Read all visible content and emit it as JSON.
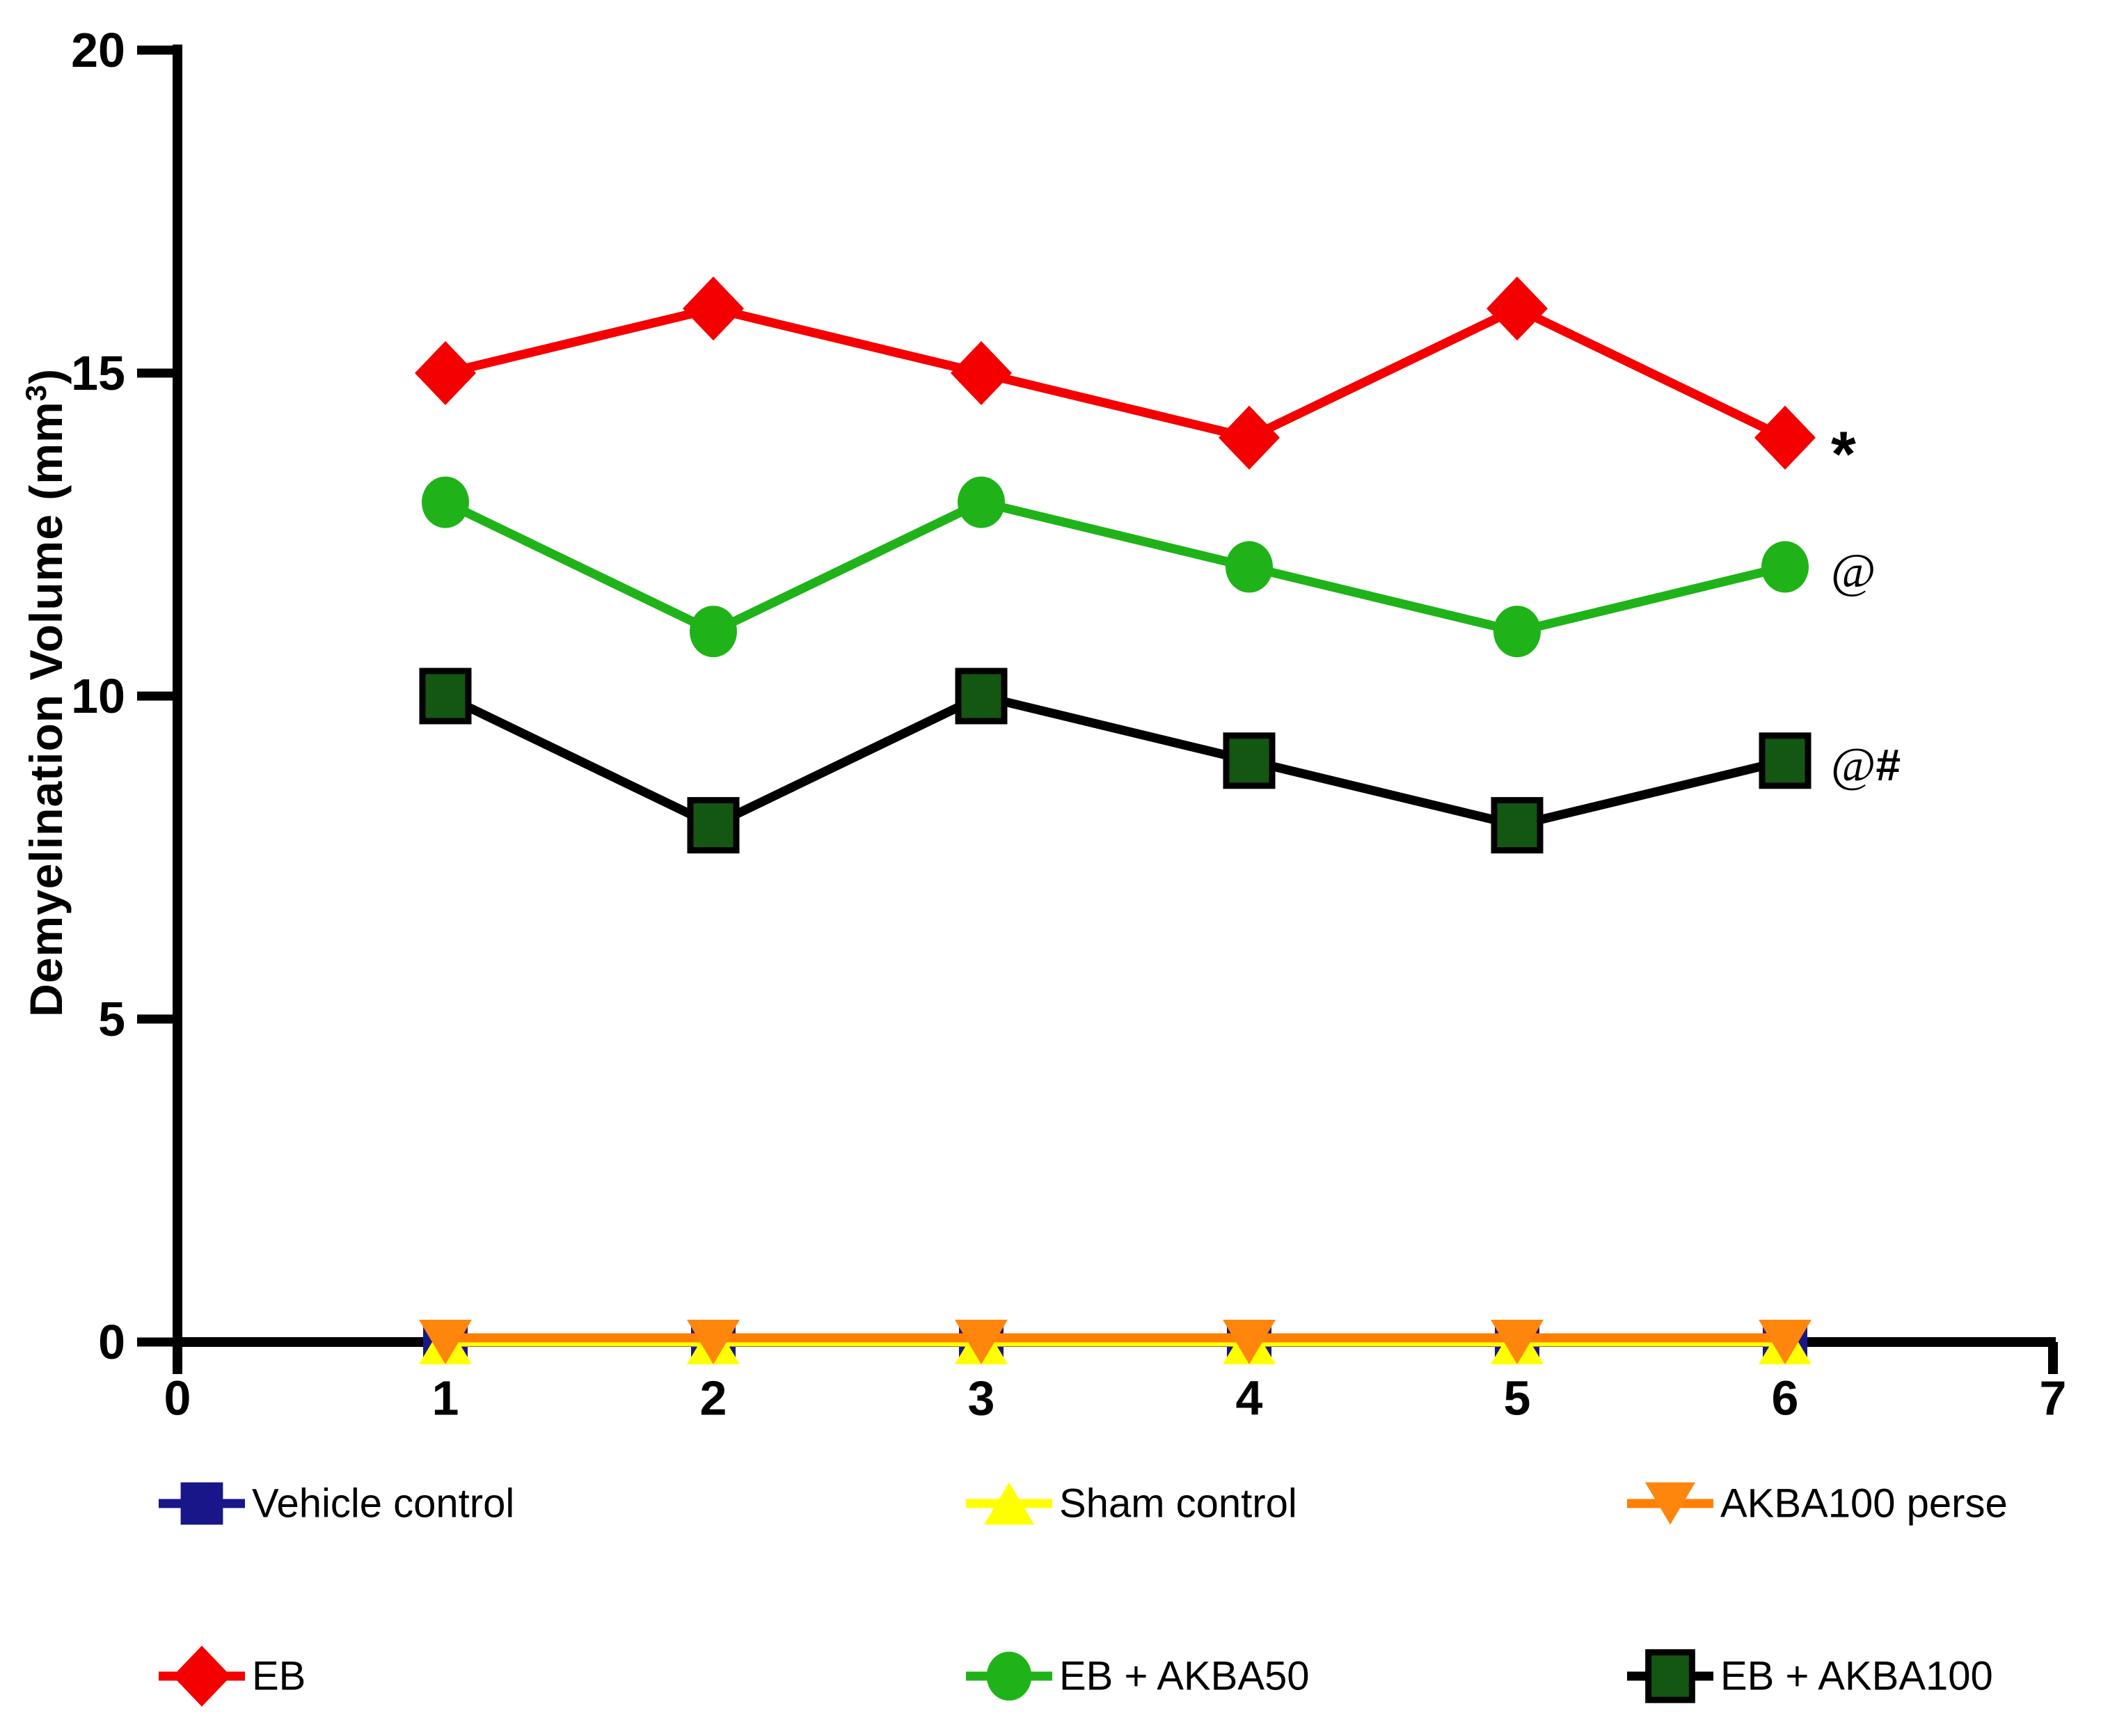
{
  "figure": {
    "background": "#ffffff",
    "ylabel": {
      "prefix": "Demyelination Volume (mm",
      "sup": "3",
      "suffix": ")"
    }
  },
  "chart_data": {
    "type": "line",
    "ylabel": "Demyelination Volume (mm3)",
    "x": [
      1,
      2,
      3,
      4,
      5,
      6
    ],
    "xlim": [
      0,
      7
    ],
    "ylim": [
      0,
      20
    ],
    "xticks": [
      0,
      1,
      2,
      3,
      4,
      5,
      6,
      7
    ],
    "yticks": [
      0,
      5,
      10,
      15,
      20
    ],
    "grid": false,
    "axis_color": "#000000",
    "series": [
      {
        "name": "Vehicle control",
        "marker": "square",
        "color": "#181689",
        "line_color": "#181689",
        "values": [
          0,
          0,
          0,
          0,
          0,
          0
        ],
        "annotation": ""
      },
      {
        "name": "Sham control",
        "marker": "triangle-up",
        "color": "#ffff00",
        "line_color": "#ffff00",
        "values": [
          0,
          0,
          0,
          0,
          0,
          0
        ],
        "annotation": ""
      },
      {
        "name": "AKBA100 perse",
        "marker": "triangle-down",
        "color": "#ff860d",
        "line_color": "#ff7f00",
        "values": [
          0,
          0,
          0,
          0,
          0,
          0
        ],
        "annotation": ""
      },
      {
        "name": "EB",
        "marker": "diamond",
        "color": "#f40000",
        "line_color": "#f40000",
        "values": [
          15,
          16,
          15,
          14,
          16,
          14
        ],
        "annotation": "*"
      },
      {
        "name": "EB +  AKBA50",
        "marker": "circle",
        "color": "#1fb319",
        "line_color": "#1fb319",
        "values": [
          13,
          11,
          13,
          12,
          11,
          12
        ],
        "annotation": "@"
      },
      {
        "name": "EB + AKBA100",
        "marker": "square-outlined",
        "color": "#135713",
        "line_color": "#000000",
        "values": [
          10,
          8,
          10,
          9,
          8,
          9
        ],
        "annotation": "@#"
      }
    ],
    "legend_rows": [
      [
        0,
        1,
        2
      ],
      [
        3,
        4,
        5
      ]
    ],
    "legend_position": "bottom"
  }
}
